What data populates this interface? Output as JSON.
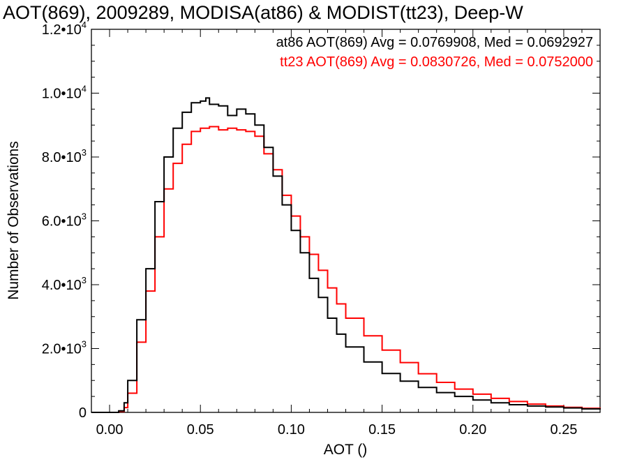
{
  "chart_data": {
    "type": "line",
    "title": "AOT(869), 2009289, MODISA(at86) & MODIST(tt23), Deep-W",
    "xlabel": "AOT ()",
    "ylabel": "Number of Observations",
    "xlim": [
      -0.01,
      0.27
    ],
    "ylim": [
      0,
      12000
    ],
    "x_ticks": [
      {
        "value": 0.0,
        "label": "0.00"
      },
      {
        "value": 0.05,
        "label": "0.05"
      },
      {
        "value": 0.1,
        "label": "0.10"
      },
      {
        "value": 0.15,
        "label": "0.15"
      },
      {
        "value": 0.2,
        "label": "0.20"
      },
      {
        "value": 0.25,
        "label": "0.25"
      }
    ],
    "y_ticks": [
      {
        "value": 0,
        "label": "0",
        "exp": ""
      },
      {
        "value": 2000,
        "label": "2.0•10",
        "exp": "3"
      },
      {
        "value": 4000,
        "label": "4.0•10",
        "exp": "3"
      },
      {
        "value": 6000,
        "label": "6.0•10",
        "exp": "3"
      },
      {
        "value": 8000,
        "label": "8.0•10",
        "exp": "3"
      },
      {
        "value": 10000,
        "label": "1.0•10",
        "exp": "4"
      },
      {
        "value": 12000,
        "label": "1.2•10",
        "exp": "4"
      }
    ],
    "legend": [
      {
        "text": "at86 AOT(869) Avg = 0.0769908, Med = 0.0692927",
        "color": "#000000"
      },
      {
        "text": "tt23 AOT(869) Avg = 0.0830726, Med = 0.0752000",
        "color": "#ff0000"
      }
    ],
    "legend_position": "top-right",
    "grid": false,
    "series": [
      {
        "color": "#000000",
        "x": [
          -0.01,
          0.0,
          0.005,
          0.008,
          0.01,
          0.015,
          0.02,
          0.025,
          0.03,
          0.035,
          0.04,
          0.045,
          0.05,
          0.053,
          0.055,
          0.06,
          0.065,
          0.07,
          0.075,
          0.08,
          0.085,
          0.09,
          0.095,
          0.1,
          0.105,
          0.11,
          0.115,
          0.12,
          0.125,
          0.13,
          0.14,
          0.15,
          0.16,
          0.17,
          0.18,
          0.19,
          0.2,
          0.21,
          0.22,
          0.23,
          0.24,
          0.25,
          0.26,
          0.27
        ],
        "y": [
          0,
          0,
          50,
          300,
          1000,
          2900,
          4500,
          6600,
          8000,
          8900,
          9400,
          9700,
          9750,
          9850,
          9650,
          9600,
          9300,
          9500,
          9350,
          9000,
          8300,
          7400,
          6500,
          5700,
          5000,
          4200,
          3600,
          2950,
          2450,
          2050,
          1580,
          1220,
          980,
          780,
          620,
          500,
          390,
          300,
          240,
          200,
          170,
          140,
          110,
          90
        ]
      },
      {
        "color": "#ff0000",
        "x": [
          -0.01,
          0.0,
          0.005,
          0.008,
          0.01,
          0.015,
          0.02,
          0.025,
          0.03,
          0.035,
          0.04,
          0.045,
          0.05,
          0.055,
          0.06,
          0.065,
          0.07,
          0.075,
          0.08,
          0.085,
          0.09,
          0.095,
          0.1,
          0.105,
          0.11,
          0.115,
          0.12,
          0.125,
          0.13,
          0.14,
          0.15,
          0.16,
          0.17,
          0.18,
          0.19,
          0.2,
          0.21,
          0.22,
          0.23,
          0.24,
          0.25,
          0.26,
          0.27
        ],
        "y": [
          0,
          0,
          30,
          150,
          600,
          2200,
          3800,
          5500,
          7000,
          7800,
          8400,
          8800,
          8900,
          8950,
          8850,
          8900,
          8850,
          8800,
          8650,
          8100,
          7600,
          6800,
          6150,
          5500,
          4950,
          4450,
          3900,
          3400,
          2950,
          2400,
          1950,
          1560,
          1210,
          940,
          730,
          570,
          440,
          340,
          260,
          200,
          160,
          130,
          90
        ]
      }
    ]
  }
}
